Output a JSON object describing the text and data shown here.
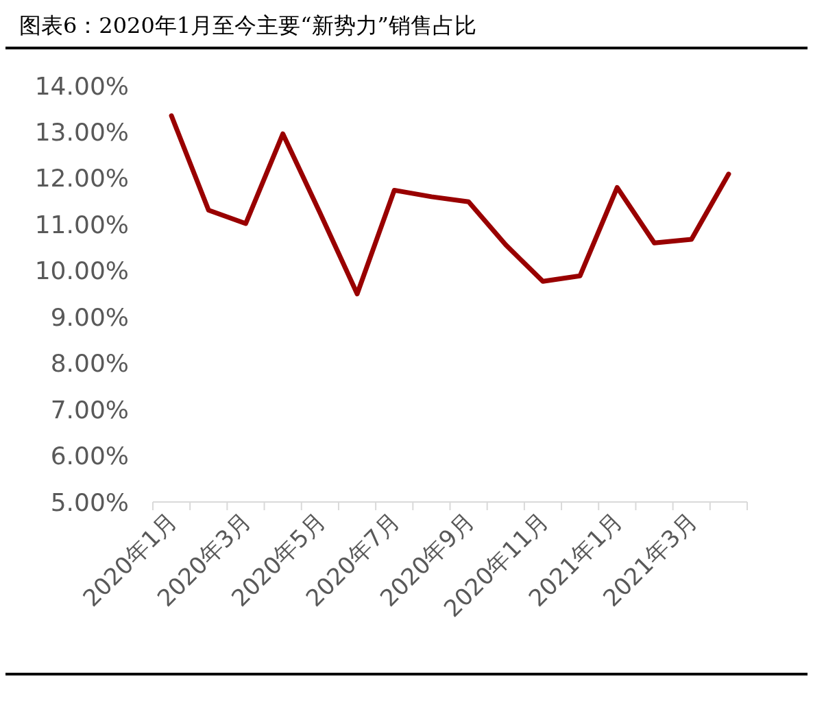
{
  "chart_data": {
    "type": "line",
    "title": "图表6：2020年1月至今主要“新势力”销售占比",
    "categories": [
      "2020年1月",
      null,
      "2020年3月",
      null,
      "2020年5月",
      null,
      "2020年7月",
      null,
      "2020年9月",
      null,
      "2020年11月",
      null,
      "2021年1月",
      null,
      "2021年3月",
      null
    ],
    "series": [
      {
        "color": "#990000",
        "values": [
          13.35,
          11.31,
          11.02,
          12.96,
          11.25,
          9.5,
          11.74,
          11.6,
          11.49,
          10.56,
          9.77,
          9.89,
          11.8,
          10.6,
          10.68,
          12.09
        ]
      }
    ],
    "ylim": [
      5,
      14
    ],
    "yticks": [
      {
        "value": 5,
        "label": "5.00%"
      },
      {
        "value": 6,
        "label": "6.00%"
      },
      {
        "value": 7,
        "label": "7.00%"
      },
      {
        "value": 8,
        "label": "8.00%"
      },
      {
        "value": 9,
        "label": "9.00%"
      },
      {
        "value": 10,
        "label": "10.00%"
      },
      {
        "value": 11,
        "label": "11.00%"
      },
      {
        "value": 12,
        "label": "12.00%"
      },
      {
        "value": 13,
        "label": "13.00%"
      },
      {
        "value": 14,
        "label": "14.00%"
      }
    ],
    "grid": false,
    "marker": "none",
    "line_style": "solid"
  }
}
